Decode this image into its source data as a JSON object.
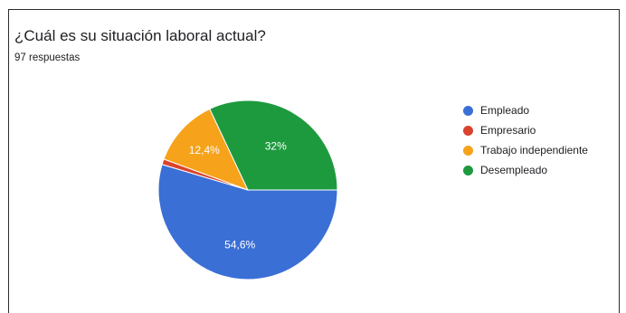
{
  "chart_data": {
    "type": "pie",
    "title": "¿Cuál es su situación laboral actual?",
    "subtitle": "97 respuestas",
    "slices": [
      {
        "label": "Empleado",
        "value": 54.6,
        "display": "54,6%",
        "color": "#3a6fd6",
        "show_label": true
      },
      {
        "label": "Empresario",
        "value": 1.0,
        "display": "",
        "color": "#d8442e",
        "show_label": false
      },
      {
        "label": "Trabajo independiente",
        "value": 12.4,
        "display": "12,4%",
        "color": "#f6a31b",
        "show_label": true
      },
      {
        "label": "Desempleado",
        "value": 32.0,
        "display": "32%",
        "color": "#1e9a3e",
        "show_label": true
      }
    ],
    "start_angle_deg": 90,
    "direction": "clockwise",
    "legend_position": "right"
  }
}
